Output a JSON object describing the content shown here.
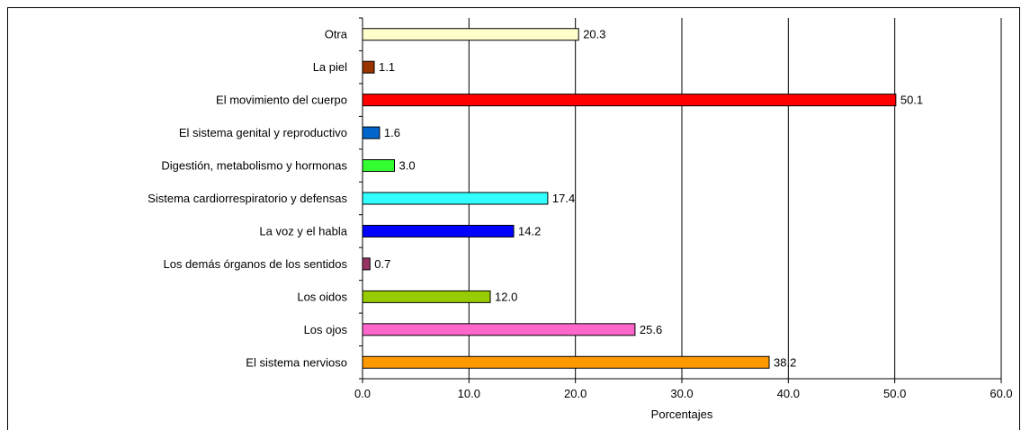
{
  "chart_data": {
    "type": "bar",
    "orientation": "horizontal",
    "categories": [
      "Otra",
      "La piel",
      "El movimiento del cuerpo",
      "El sistema genital y reproductivo",
      "Digestión, metabolismo y hormonas",
      "Sistema cardiorrespiratorio y defensas",
      "La voz y el habla",
      "Los demás órganos de los sentidos",
      "Los oidos",
      "Los ojos",
      "El sistema nervioso"
    ],
    "values": [
      20.3,
      1.1,
      50.1,
      1.6,
      3.0,
      17.4,
      14.2,
      0.7,
      12.0,
      25.6,
      38.2
    ],
    "value_labels": [
      "20.3",
      "1.1",
      "50.1",
      "1.6",
      "3.0",
      "17.4",
      "14.2",
      "0.7",
      "12.0",
      "25.6",
      "38.2"
    ],
    "colors": [
      "#FFFFCC",
      "#993300",
      "#FF0000",
      "#0066CC",
      "#33FF33",
      "#33FFFF",
      "#0000FF",
      "#993366",
      "#99CC00",
      "#FF66CC",
      "#FF9900"
    ],
    "xlim": [
      0,
      60
    ],
    "xticks": [
      0,
      10,
      20,
      30,
      40,
      50,
      60
    ],
    "xtick_labels": [
      "0.0",
      "10.0",
      "20.0",
      "30.0",
      "40.0",
      "50.0",
      "60.0"
    ],
    "xlabel": "Porcentajes",
    "ylabel": "",
    "title": "",
    "grid": "vertical"
  }
}
